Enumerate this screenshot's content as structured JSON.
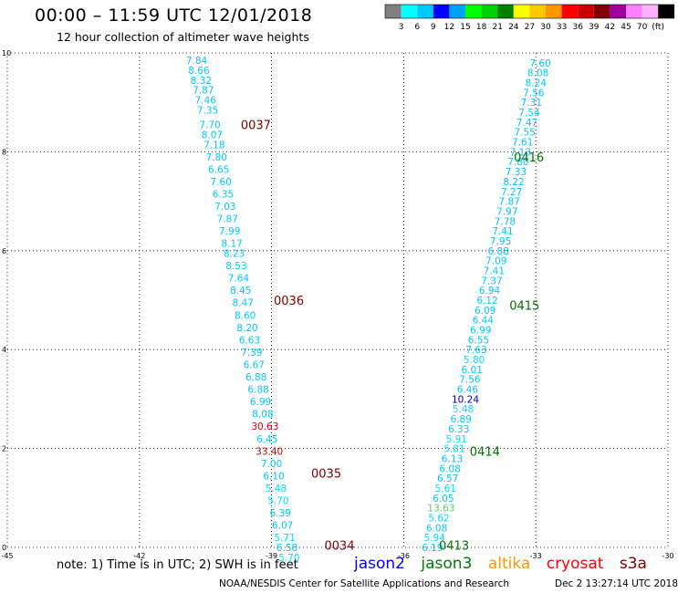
{
  "header": {
    "title": "00:00 – 11:59 UTC 12/01/2018",
    "subtitle": "12 hour collection of altimeter wave heights"
  },
  "legend": {
    "colors": [
      "#808080",
      "#00ffff",
      "#00c8ff",
      "#0000ff",
      "#00a0ff",
      "#00ff00",
      "#00d000",
      "#008000",
      "#ffff00",
      "#ffc800",
      "#ff9600",
      "#ff0000",
      "#c80000",
      "#800000",
      "#a000a0",
      "#ff80ff",
      "#ffb0ff",
      "#000000"
    ],
    "labels": [
      "3",
      "6",
      "9",
      "12",
      "15",
      "18",
      "21",
      "24",
      "27",
      "30",
      "33",
      "36",
      "39",
      "42",
      "45",
      "70",
      "(ft)"
    ]
  },
  "axes": {
    "x": {
      "min": -45,
      "max": -30,
      "ticks": [
        "-45",
        "-42",
        "-39",
        "-36",
        "-33",
        "-30"
      ]
    },
    "y": {
      "min": 0,
      "max": 10,
      "ticks": [
        "0",
        "2",
        "4",
        "6",
        "8",
        "10"
      ]
    }
  },
  "chart_data": {
    "type": "scatter",
    "track_labels": [
      {
        "text": "0037",
        "x": -39.7,
        "y": 8.55,
        "color": "#800000"
      },
      {
        "text": "0036",
        "x": -38.95,
        "y": 5.0,
        "color": "#800000"
      },
      {
        "text": "0035",
        "x": -38.1,
        "y": 1.5,
        "color": "#800000"
      },
      {
        "text": "0034",
        "x": -37.8,
        "y": 0.05,
        "color": "#800000"
      },
      {
        "text": "0416",
        "x": -33.5,
        "y": 7.9,
        "color": "#007000"
      },
      {
        "text": "0415",
        "x": -33.6,
        "y": 4.9,
        "color": "#007000"
      },
      {
        "text": "0414",
        "x": -34.5,
        "y": 1.95,
        "color": "#007000"
      },
      {
        "text": "0413",
        "x": -35.2,
        "y": 0.05,
        "color": "#007000"
      }
    ],
    "tracks": [
      {
        "points": [
          {
            "x": -40.7,
            "y": 9.85,
            "v": "7.84",
            "c": "#00c8ff"
          },
          {
            "x": -40.65,
            "y": 9.65,
            "v": "8.66",
            "c": "#00c8ff"
          },
          {
            "x": -40.6,
            "y": 9.45,
            "v": "8.32",
            "c": "#00c8ff"
          },
          {
            "x": -40.55,
            "y": 9.25,
            "v": "7.87",
            "c": "#00c8ff"
          },
          {
            "x": -40.5,
            "y": 9.05,
            "v": "7.46",
            "c": "#00c8ff"
          },
          {
            "x": -40.45,
            "y": 8.85,
            "v": "7.35",
            "c": "#00c8ff"
          },
          {
            "x": -40.4,
            "y": 8.55,
            "v": "7.70",
            "c": "#00c8ff"
          },
          {
            "x": -40.35,
            "y": 8.35,
            "v": "8.07",
            "c": "#00c8ff"
          },
          {
            "x": -40.3,
            "y": 8.15,
            "v": "7.18",
            "c": "#00c8ff"
          },
          {
            "x": -40.25,
            "y": 7.9,
            "v": "7.80",
            "c": "#00c8ff"
          },
          {
            "x": -40.2,
            "y": 7.65,
            "v": "6.65",
            "c": "#00c8ff"
          },
          {
            "x": -40.15,
            "y": 7.4,
            "v": "7.60",
            "c": "#00c8ff"
          },
          {
            "x": -40.1,
            "y": 7.15,
            "v": "6.35",
            "c": "#00c8ff"
          },
          {
            "x": -40.05,
            "y": 6.9,
            "v": "7.03",
            "c": "#00c8ff"
          },
          {
            "x": -40.0,
            "y": 6.65,
            "v": "7.87",
            "c": "#00c8ff"
          },
          {
            "x": -39.95,
            "y": 6.4,
            "v": "7.99",
            "c": "#00c8ff"
          },
          {
            "x": -39.9,
            "y": 6.15,
            "v": "8.17",
            "c": "#00c8ff"
          },
          {
            "x": -39.85,
            "y": 5.95,
            "v": "8.23",
            "c": "#00c8ff"
          },
          {
            "x": -39.8,
            "y": 5.7,
            "v": "8.53",
            "c": "#00c8ff"
          },
          {
            "x": -39.75,
            "y": 5.45,
            "v": "7.64",
            "c": "#00c8ff"
          },
          {
            "x": -39.7,
            "y": 5.2,
            "v": "8.45",
            "c": "#00c8ff"
          },
          {
            "x": -39.65,
            "y": 4.95,
            "v": "8.47",
            "c": "#00c8ff"
          },
          {
            "x": -39.6,
            "y": 4.7,
            "v": "8.60",
            "c": "#00c8ff"
          },
          {
            "x": -39.55,
            "y": 4.45,
            "v": "8.20",
            "c": "#00c8ff"
          },
          {
            "x": -39.5,
            "y": 4.2,
            "v": "6.63",
            "c": "#00c8ff"
          },
          {
            "x": -39.45,
            "y": 3.95,
            "v": "7.39",
            "c": "#00c8ff"
          },
          {
            "x": -39.4,
            "y": 3.7,
            "v": "6.67",
            "c": "#00c8ff"
          },
          {
            "x": -39.35,
            "y": 3.45,
            "v": "6.88",
            "c": "#00c8ff"
          },
          {
            "x": -39.3,
            "y": 3.2,
            "v": "6.88",
            "c": "#00c8ff"
          },
          {
            "x": -39.25,
            "y": 2.95,
            "v": "6.99",
            "c": "#00c8ff"
          },
          {
            "x": -39.2,
            "y": 2.7,
            "v": "8.08",
            "c": "#00c8ff"
          },
          {
            "x": -39.15,
            "y": 2.45,
            "v": "30.63",
            "c": "#e00000"
          },
          {
            "x": -39.1,
            "y": 2.2,
            "v": "6.45",
            "c": "#00c8ff"
          },
          {
            "x": -39.05,
            "y": 1.95,
            "v": "33.40",
            "c": "#c00000"
          },
          {
            "x": -39.0,
            "y": 1.7,
            "v": "7.00",
            "c": "#00c8ff"
          },
          {
            "x": -38.95,
            "y": 1.45,
            "v": "6.10",
            "c": "#00c8ff"
          },
          {
            "x": -38.9,
            "y": 1.2,
            "v": "5.48",
            "c": "#00e0ff"
          },
          {
            "x": -38.85,
            "y": 0.95,
            "v": "5.70",
            "c": "#00e0ff"
          },
          {
            "x": -38.8,
            "y": 0.7,
            "v": "6.39",
            "c": "#00c8ff"
          },
          {
            "x": -38.75,
            "y": 0.45,
            "v": "6.07",
            "c": "#00c8ff"
          },
          {
            "x": -38.7,
            "y": 0.2,
            "v": "5.71",
            "c": "#00e0ff"
          },
          {
            "x": -38.65,
            "y": 0.0,
            "v": "6.58",
            "c": "#00c8ff"
          },
          {
            "x": -38.6,
            "y": -0.2,
            "v": "5.70",
            "c": "#00e0ff"
          }
        ]
      },
      {
        "points": [
          {
            "x": -32.9,
            "y": 9.8,
            "v": "7.60",
            "c": "#00c8ff"
          },
          {
            "x": -32.95,
            "y": 9.6,
            "v": "8.08",
            "c": "#00c8ff"
          },
          {
            "x": -33.0,
            "y": 9.4,
            "v": "8.24",
            "c": "#00c8ff"
          },
          {
            "x": -33.05,
            "y": 9.2,
            "v": "7.56",
            "c": "#00c8ff"
          },
          {
            "x": -33.1,
            "y": 9.0,
            "v": "7.31",
            "c": "#00c8ff"
          },
          {
            "x": -33.15,
            "y": 8.8,
            "v": "7.54",
            "c": "#00c8ff"
          },
          {
            "x": -33.2,
            "y": 8.6,
            "v": "7.47",
            "c": "#00c8ff"
          },
          {
            "x": -33.25,
            "y": 8.4,
            "v": "7.55",
            "c": "#00c8ff"
          },
          {
            "x": -33.3,
            "y": 8.2,
            "v": "7.61",
            "c": "#00c8ff"
          },
          {
            "x": -33.35,
            "y": 8.0,
            "v": "7.13",
            "c": "#00c8ff"
          },
          {
            "x": -33.4,
            "y": 7.8,
            "v": "7.80",
            "c": "#00c8ff"
          },
          {
            "x": -33.45,
            "y": 7.6,
            "v": "7.33",
            "c": "#00c8ff"
          },
          {
            "x": -33.5,
            "y": 7.4,
            "v": "8.22",
            "c": "#00c8ff"
          },
          {
            "x": -33.55,
            "y": 7.2,
            "v": "7.27",
            "c": "#00c8ff"
          },
          {
            "x": -33.6,
            "y": 7.0,
            "v": "7.87",
            "c": "#00c8ff"
          },
          {
            "x": -33.65,
            "y": 6.8,
            "v": "7.97",
            "c": "#00c8ff"
          },
          {
            "x": -33.7,
            "y": 6.6,
            "v": "7.78",
            "c": "#00c8ff"
          },
          {
            "x": -33.75,
            "y": 6.4,
            "v": "7.41",
            "c": "#00c8ff"
          },
          {
            "x": -33.8,
            "y": 6.2,
            "v": "7.95",
            "c": "#00c8ff"
          },
          {
            "x": -33.85,
            "y": 6.0,
            "v": "6.88",
            "c": "#00c8ff"
          },
          {
            "x": -33.9,
            "y": 5.8,
            "v": "7.09",
            "c": "#00c8ff"
          },
          {
            "x": -33.95,
            "y": 5.6,
            "v": "7.41",
            "c": "#00c8ff"
          },
          {
            "x": -34.0,
            "y": 5.4,
            "v": "7.37",
            "c": "#00c8ff"
          },
          {
            "x": -34.05,
            "y": 5.2,
            "v": "6.94",
            "c": "#00c8ff"
          },
          {
            "x": -34.1,
            "y": 5.0,
            "v": "6.12",
            "c": "#00c8ff"
          },
          {
            "x": -34.15,
            "y": 4.8,
            "v": "6.09",
            "c": "#00c8ff"
          },
          {
            "x": -34.2,
            "y": 4.6,
            "v": "6.44",
            "c": "#00c8ff"
          },
          {
            "x": -34.25,
            "y": 4.4,
            "v": "6.99",
            "c": "#00c8ff"
          },
          {
            "x": -34.3,
            "y": 4.2,
            "v": "6.55",
            "c": "#00c8ff"
          },
          {
            "x": -34.35,
            "y": 4.0,
            "v": "7.63",
            "c": "#00c8ff"
          },
          {
            "x": -34.4,
            "y": 3.8,
            "v": "5.80",
            "c": "#00e0ff"
          },
          {
            "x": -34.45,
            "y": 3.6,
            "v": "6.01",
            "c": "#00c8ff"
          },
          {
            "x": -34.5,
            "y": 3.4,
            "v": "7.56",
            "c": "#00c8ff"
          },
          {
            "x": -34.55,
            "y": 3.2,
            "v": "6.46",
            "c": "#00c8ff"
          },
          {
            "x": -34.6,
            "y": 3.0,
            "v": "10.24",
            "c": "#0000c0"
          },
          {
            "x": -34.65,
            "y": 2.8,
            "v": "5.48",
            "c": "#00e0ff"
          },
          {
            "x": -34.7,
            "y": 2.6,
            "v": "6.89",
            "c": "#00c8ff"
          },
          {
            "x": -34.75,
            "y": 2.4,
            "v": "6.33",
            "c": "#00c8ff"
          },
          {
            "x": -34.8,
            "y": 2.2,
            "v": "5.91",
            "c": "#00e0ff"
          },
          {
            "x": -34.85,
            "y": 2.0,
            "v": "5.81",
            "c": "#00e0ff"
          },
          {
            "x": -34.9,
            "y": 1.8,
            "v": "6.13",
            "c": "#00c8ff"
          },
          {
            "x": -34.95,
            "y": 1.6,
            "v": "6.08",
            "c": "#00c8ff"
          },
          {
            "x": -35.0,
            "y": 1.4,
            "v": "6.57",
            "c": "#00c8ff"
          },
          {
            "x": -35.05,
            "y": 1.2,
            "v": "5.61",
            "c": "#00e0ff"
          },
          {
            "x": -35.1,
            "y": 1.0,
            "v": "6.05",
            "c": "#00c8ff"
          },
          {
            "x": -35.15,
            "y": 0.8,
            "v": "13.63",
            "c": "#60d060"
          },
          {
            "x": -35.2,
            "y": 0.6,
            "v": "5.62",
            "c": "#00e0ff"
          },
          {
            "x": -35.25,
            "y": 0.4,
            "v": "6.08",
            "c": "#00c8ff"
          },
          {
            "x": -35.3,
            "y": 0.2,
            "v": "5.94",
            "c": "#00e0ff"
          },
          {
            "x": -35.35,
            "y": 0.0,
            "v": "6.19",
            "c": "#00c8ff"
          }
        ]
      }
    ]
  },
  "note": "note:  1) Time is in UTC;  2) SWH is in feet",
  "satellites": [
    {
      "name": "jason2",
      "color": "#0000ff"
    },
    {
      "name": "jason3",
      "color": "#008000"
    },
    {
      "name": "altika",
      "color": "#ff9600"
    },
    {
      "name": "cryosat",
      "color": "#ff0000"
    },
    {
      "name": "s3a",
      "color": "#800000"
    }
  ],
  "footer": {
    "credit": "NOAA/NESDIS Center for Satellite Applications and Research",
    "timestamp": "Dec  2 13:27:14 UTC 2018"
  }
}
